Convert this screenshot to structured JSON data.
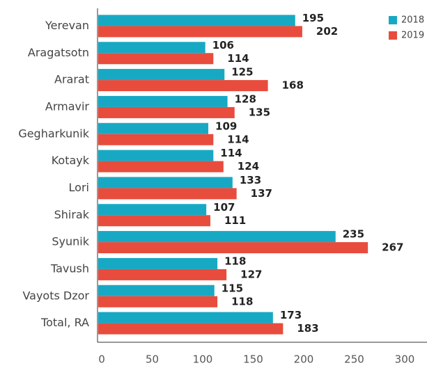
{
  "chart_data": {
    "type": "bar",
    "orientation": "horizontal",
    "categories": [
      "Yerevan",
      "Aragatsotn",
      "Ararat",
      "Armavir",
      "Gegharkunik",
      "Kotayk",
      "Lori",
      "Shirak",
      "Syunik",
      "Tavush",
      "Vayots Dzor",
      "Total, RA"
    ],
    "series": [
      {
        "name": "2018",
        "color": "#17a9c4",
        "values": [
          195,
          106,
          125,
          128,
          109,
          114,
          133,
          107,
          235,
          118,
          115,
          173
        ]
      },
      {
        "name": "2019",
        "color": "#e84c3d",
        "values": [
          202,
          114,
          168,
          135,
          114,
          124,
          137,
          111,
          267,
          127,
          118,
          183
        ]
      }
    ],
    "xlim": [
      0,
      300
    ],
    "xticks": [
      0,
      50,
      100,
      150,
      200,
      250,
      300
    ],
    "legend": "top-right"
  }
}
